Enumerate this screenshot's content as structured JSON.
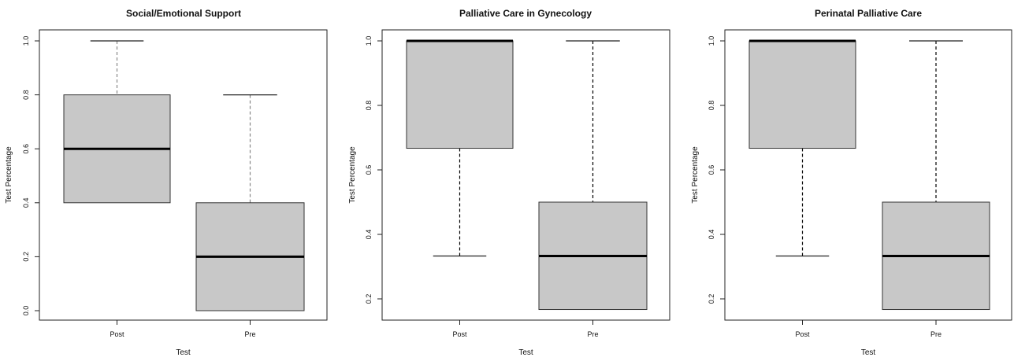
{
  "chart_data": [
    {
      "type": "boxplot",
      "title": "Social/Emotional Support",
      "xlabel": "Test",
      "ylabel": "Test Percentage",
      "categories": [
        "Post",
        "Pre"
      ],
      "ylim": [
        0.0,
        1.0
      ],
      "yticks": [
        "0.0",
        "0.2",
        "0.4",
        "0.6",
        "0.8",
        "1.0"
      ],
      "boxes": [
        {
          "label": "Post",
          "min": 0.4,
          "q1": 0.4,
          "median": 0.6,
          "q3": 0.8,
          "max": 1.0
        },
        {
          "label": "Pre",
          "min": 0.0,
          "q1": 0.0,
          "median": 0.2,
          "q3": 0.4,
          "max": 0.8
        }
      ],
      "whisker_style": "dashed-gray"
    },
    {
      "type": "boxplot",
      "title": "Palliative Care in Gynecology",
      "xlabel": "Test",
      "ylabel": "Test Percentage",
      "categories": [
        "Post",
        "Pre"
      ],
      "ylim": [
        0.167,
        1.0
      ],
      "yticks": [
        "0.2",
        "0.4",
        "0.6",
        "0.8",
        "1.0"
      ],
      "boxes": [
        {
          "label": "Post",
          "min": 0.333,
          "q1": 0.667,
          "median": 1.0,
          "q3": 1.0,
          "max": 1.0
        },
        {
          "label": "Pre",
          "min": 0.167,
          "q1": 0.167,
          "median": 0.333,
          "q3": 0.5,
          "max": 1.0
        }
      ],
      "whisker_style": "dashed-black"
    },
    {
      "type": "boxplot",
      "title": "Perinatal Palliative Care",
      "xlabel": "Test",
      "ylabel": "Test Percentage",
      "categories": [
        "Post",
        "Pre"
      ],
      "ylim": [
        0.167,
        1.0
      ],
      "yticks": [
        "0.2",
        "0.4",
        "0.6",
        "0.8",
        "1.0"
      ],
      "boxes": [
        {
          "label": "Post",
          "min": 0.333,
          "q1": 0.667,
          "median": 1.0,
          "q3": 1.0,
          "max": 1.0
        },
        {
          "label": "Pre",
          "min": 0.167,
          "q1": 0.167,
          "median": 0.333,
          "q3": 0.5,
          "max": 1.0
        }
      ],
      "whisker_style": "dashed-black"
    }
  ],
  "colors": {
    "box_fill": "#c8c8c8",
    "box_stroke": "#333333",
    "median": "#000000",
    "whisker_gray": "#888888",
    "whisker_black": "#000000",
    "axis": "#222222"
  }
}
